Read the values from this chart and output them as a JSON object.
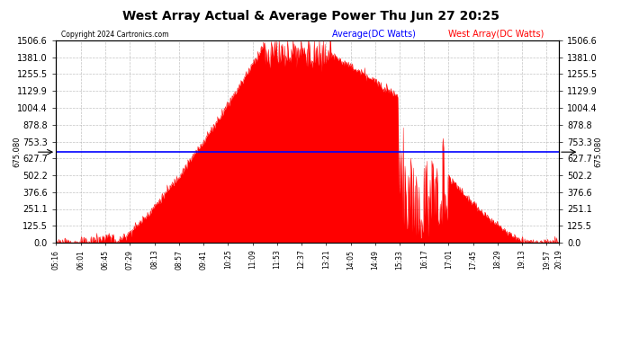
{
  "title": "West Array Actual & Average Power Thu Jun 27 20:25",
  "copyright": "Copyright 2024 Cartronics.com",
  "legend_average": "Average(DC Watts)",
  "legend_west": "West Array(DC Watts)",
  "average_value": 675.08,
  "ymax": 1506.6,
  "ymin": 0.0,
  "yticks": [
    0.0,
    125.5,
    251.1,
    376.6,
    502.2,
    627.7,
    753.3,
    878.8,
    1004.4,
    1129.9,
    1255.5,
    1381.0,
    1506.6
  ],
  "xtick_labels": [
    "05:16",
    "06:01",
    "06:45",
    "07:29",
    "08:13",
    "08:57",
    "09:41",
    "10:25",
    "11:09",
    "11:53",
    "12:37",
    "13:21",
    "14:05",
    "14:49",
    "15:33",
    "16:17",
    "17:01",
    "17:45",
    "18:29",
    "19:13",
    "19:57",
    "20:19"
  ],
  "background_color": "#ffffff",
  "fill_color": "#ff0000",
  "line_color": "#ff0000",
  "average_line_color": "#0000ff",
  "grid_color": "#aaaaaa",
  "title_color": "#000000",
  "copyright_color": "#000000",
  "legend_avg_color": "#0000ff",
  "legend_west_color": "#ff0000",
  "avg_label": "675.080"
}
